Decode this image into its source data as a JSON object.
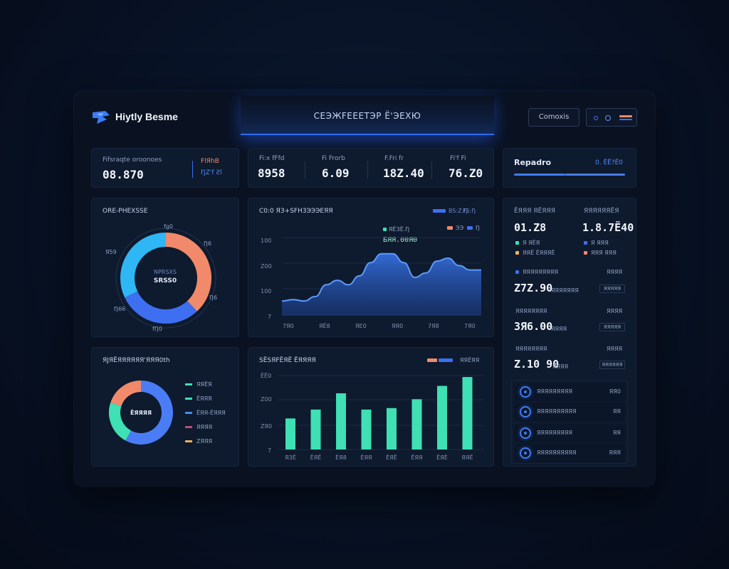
{
  "header": {
    "brand": "Hiytly Besme",
    "center_title": "CEЭЖFEEЕТЭР Ё'ЭЕХЮ",
    "button_label": "Comoxis"
  },
  "kpis": [
    {
      "label": "Fifsraqte oroonoes",
      "value": "08.870",
      "side_label": "FlЯhB",
      "side_sub": "ŊZ'f  Ƨl"
    },
    {
      "label": "Fi:x fFfd",
      "value": "8958"
    },
    {
      "label": "Fi Frorb",
      "value": "6.09"
    },
    {
      "label": "F.Fri fr",
      "value": "18Z.40"
    },
    {
      "label": "Fi'f Fi",
      "value": "76.Z0"
    }
  ],
  "report": {
    "title": "Repadro",
    "sub": "0. ЁЁ?Ё0"
  },
  "donut1": {
    "title": "ORE-PHEXSSE",
    "center_label": "NPRSXS",
    "center_value": "SRSS0",
    "callouts": [
      "fg0",
      "Ŋ6",
      "Я59",
      "Ŋ6",
      "Ŋ66",
      "fŊ0"
    ],
    "segments": [
      {
        "value": 38,
        "color": "#f08a6a"
      },
      {
        "value": 30,
        "color": "#3d6ff0"
      },
      {
        "value": 32,
        "color": "#2fb7f5"
      }
    ]
  },
  "line_panel": {
    "title": "C0:0 ЯЗ+SFH3ЭЭЭЕЯЯ",
    "legend": [
      "BS:Z.Ŋ",
      "FS:Ŋ"
    ],
    "legend2": [
      "ЭЭ",
      "Ŋ"
    ],
    "annotation_label": "ЯЁ3Ё.Ŋ",
    "annotation_value": "БЯЯ.00Я0",
    "y_ticks": [
      "100",
      "Z00",
      "100",
      "7"
    ],
    "x_ticks": [
      "7Я0",
      "ЯЁ8",
      "ЯE0",
      "ЯЯ0",
      "7Я8",
      "7Я0"
    ]
  },
  "chart_data": [
    {
      "type": "area",
      "title": "C0:0 ЯЗ+SFH3ЭЭЭЕЯЯ",
      "x": [
        0,
        1,
        2,
        3,
        4,
        5,
        6,
        7,
        8,
        9,
        10,
        11,
        12,
        13,
        14,
        15,
        16,
        17,
        18
      ],
      "values": [
        18,
        20,
        18,
        24,
        40,
        46,
        40,
        52,
        70,
        82,
        82,
        70,
        50,
        56,
        72,
        76,
        66,
        60,
        60
      ],
      "ylim": [
        0,
        100
      ]
    },
    {
      "type": "bar",
      "title": "SЁSЯFЁЯЁ ЁЯЯЯЯ",
      "categories": [
        "ЯЗЁ",
        "ЁЯЁ",
        "ЁЯ8",
        "ЁЯЯ",
        "ЁЯЁ",
        "ЁЯЯ",
        "ЁЯЁ",
        "ЯЯЁ"
      ],
      "values": [
        42,
        54,
        76,
        54,
        56,
        68,
        86,
        98
      ],
      "ylim": [
        0,
        100
      ]
    }
  ],
  "donut2": {
    "title": "ЯJЯЁЯЯЯЯЯЯ'ЯЯЯ0th",
    "center_value": "ЁЯЯЯЯ",
    "legend": [
      {
        "label": "ЯЯЁЯ",
        "color": "#3ee0b4"
      },
      {
        "label": "ЁЯЯЯ",
        "color": "#3ee0b4"
      },
      {
        "label": "ЁЯЯ-ЁЯЯЯ",
        "color": "#3d8cff"
      },
      {
        "label": "ЯЯЯЯ",
        "color": "#c04a7a"
      },
      {
        "label": "ZЯЯЯ",
        "color": "#f0b060"
      }
    ],
    "segments": [
      {
        "value": 58,
        "color": "#4a7df5"
      },
      {
        "value": 22,
        "color": "#3ee0b4"
      },
      {
        "value": 20,
        "color": "#f08a6a"
      }
    ]
  },
  "bar_panel": {
    "title": "SЁSЯFЁЯЁ ЁЯЯЯЯ",
    "legend": "ЯЯЁЯЯ",
    "y_ticks": [
      "ЁЁ0",
      "Z00",
      "ZЯ0",
      "7"
    ]
  },
  "stats": {
    "col1_label": "ЁЯЯЯ ЯЁЯЯЯ",
    "col1_value": "01.Z8",
    "col1_sub1": "Я ЯЁЯ",
    "col1_sub2": "ЯЯЁ ЁЯЯЯЁ",
    "col2_label": "ЯЯЯЯЯЯЁЯ",
    "col2_value": "1.8.7Ё40",
    "col2_sub1": "Я ЯЯЯ",
    "col2_sub2": "ЯЯЯ ЯЯЯ",
    "rows": [
      {
        "label": "ЯЯЯЯЯЯЯЯЯ",
        "right": "ЯЯЯЯ",
        "value": "Z7Z.90",
        "sub": "ЯЯЯЯЯЯЯ",
        "pill": "ЯЯЯЯЯ"
      },
      {
        "label": "ЯЯЯЯЯЯЯЯ",
        "right": "ЯЯЯЯ",
        "value": "3Я6.00",
        "sub": "ЯЯЯЯ",
        "pill": "ЯЯЯЯЯ"
      },
      {
        "label": "ЯЯЯЯЯЯЯЯ",
        "right": "ЯЯЯЯ",
        "value": "Z.10 90",
        "sub": "ЯЯЯЯ",
        "pill": "ЯЯЯЯЯЯ"
      }
    ]
  },
  "list": [
    {
      "label": "ЯЯЯЯЯЯЯЯЯ",
      "value": "ЯЯ0"
    },
    {
      "label": "ЯЯЯЯЯЯЯЯЯЯ",
      "value": "ЯЯ"
    },
    {
      "label": "ЯЯЯЯЯЯЯЯЯ",
      "value": "ЯЯ"
    },
    {
      "label": "ЯЯЯЯЯЯЯЯЯЯ",
      "value": "ЯЯЯ"
    }
  ]
}
